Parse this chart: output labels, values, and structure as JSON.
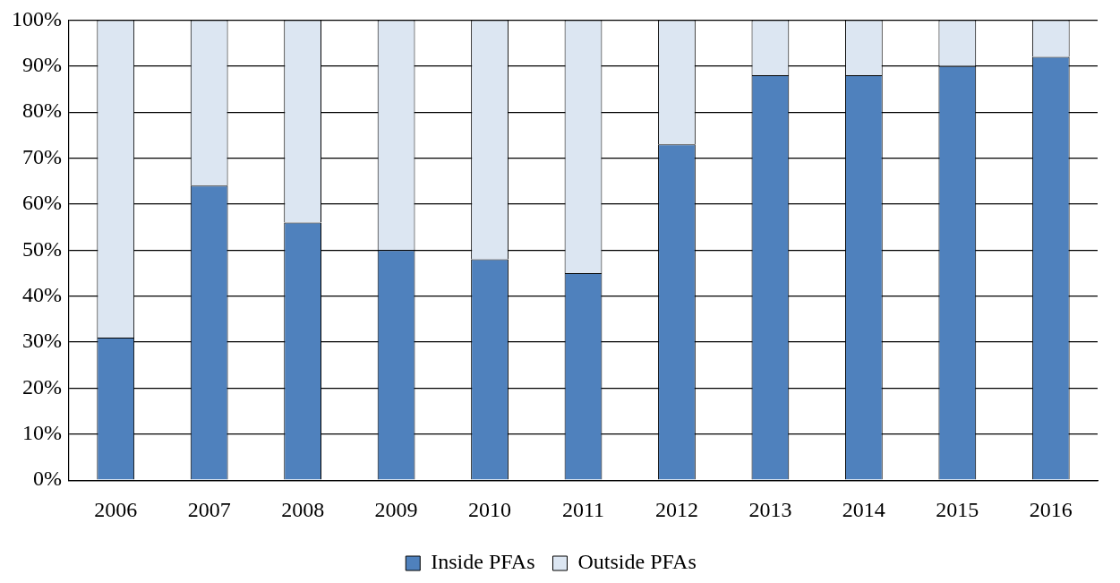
{
  "chart_data": {
    "type": "bar",
    "stacked": true,
    "categories": [
      "2006",
      "2007",
      "2008",
      "2009",
      "2010",
      "2011",
      "2012",
      "2013",
      "2014",
      "2015",
      "2016"
    ],
    "series": [
      {
        "name": "Inside PFAs",
        "color": "#4f81bd",
        "values": [
          31,
          64,
          56,
          50,
          48,
          45,
          73,
          88,
          88,
          90,
          92
        ]
      },
      {
        "name": "Outside PFAs",
        "color": "#dce6f2",
        "values": [
          69,
          36,
          44,
          50,
          52,
          55,
          27,
          12,
          12,
          10,
          8
        ]
      }
    ],
    "ylim": [
      0,
      100
    ],
    "yticks": [
      {
        "value": 0,
        "label": "0%"
      },
      {
        "value": 10,
        "label": "10%"
      },
      {
        "value": 20,
        "label": "20%"
      },
      {
        "value": 30,
        "label": "30%"
      },
      {
        "value": 40,
        "label": "40%"
      },
      {
        "value": 50,
        "label": "50%"
      },
      {
        "value": 60,
        "label": "60%"
      },
      {
        "value": 70,
        "label": "70%"
      },
      {
        "value": 80,
        "label": "80%"
      },
      {
        "value": 90,
        "label": "90%"
      },
      {
        "value": 100,
        "label": "100%"
      }
    ],
    "grid": "y",
    "legend": "bottom"
  }
}
